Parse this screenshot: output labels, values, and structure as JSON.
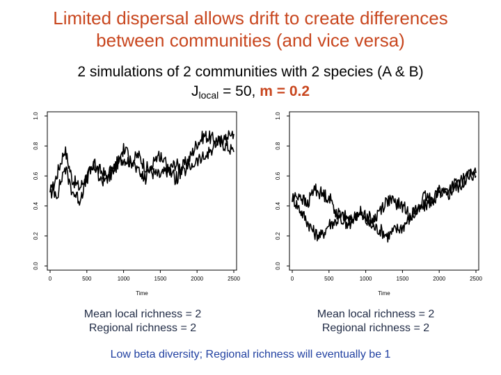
{
  "title": {
    "line1": "Limited dispersal allows drift to create differences",
    "line2": "between communities (and vice versa)"
  },
  "subtitle": {
    "line1": "2 simulations of 2 communities with 2 species (A & B)",
    "j_prefix": "J",
    "j_sub": "local",
    "j_value": " = 50, ",
    "m_text": "m = 0.2"
  },
  "left_summary": {
    "line1": "Mean local richness = 2",
    "line2": "Regional richness = 2"
  },
  "right_summary": {
    "line1": "Mean local richness = 2",
    "line2": "Regional richness = 2"
  },
  "footer": "Low beta diversity; Regional richness will eventually be 1",
  "colors": {
    "title": "#c8461e",
    "summary": "#1f2a44",
    "footer": "#1f3fa0"
  },
  "chart_data": [
    {
      "type": "line",
      "xlabel": "Time",
      "ylabel": "",
      "xlim": [
        0,
        2500
      ],
      "ylim": [
        0,
        1
      ],
      "x_ticks": [
        "0",
        "500",
        "1000",
        "1500",
        "2000",
        "2500"
      ],
      "y_ticks": [
        "0.0",
        "0.2",
        "0.4",
        "0.6",
        "0.8",
        "1.0"
      ],
      "series": [
        {
          "x": [
            0,
            100,
            200,
            300,
            400,
            500,
            600,
            700,
            800,
            900,
            1000,
            1100,
            1200,
            1300,
            1400,
            1500,
            1600,
            1700,
            1800,
            1900,
            2000,
            2100,
            2200,
            2300,
            2400,
            2500
          ],
          "values": [
            0.46,
            0.62,
            0.78,
            0.58,
            0.52,
            0.6,
            0.66,
            0.63,
            0.58,
            0.68,
            0.72,
            0.69,
            0.74,
            0.66,
            0.62,
            0.6,
            0.64,
            0.68,
            0.66,
            0.72,
            0.82,
            0.87,
            0.85,
            0.83,
            0.8,
            0.76
          ]
        },
        {
          "x": [
            0,
            100,
            200,
            300,
            400,
            500,
            600,
            700,
            800,
            900,
            1000,
            1100,
            1200,
            1300,
            1400,
            1500,
            1600,
            1700,
            1800,
            1900,
            2000,
            2100,
            2200,
            2300,
            2400,
            2500
          ],
          "values": [
            0.52,
            0.48,
            0.66,
            0.5,
            0.44,
            0.58,
            0.68,
            0.56,
            0.62,
            0.66,
            0.78,
            0.72,
            0.62,
            0.58,
            0.7,
            0.74,
            0.66,
            0.58,
            0.62,
            0.66,
            0.7,
            0.72,
            0.78,
            0.83,
            0.86,
            0.88
          ]
        }
      ]
    },
    {
      "type": "line",
      "xlabel": "Time",
      "ylabel": "",
      "xlim": [
        0,
        2500
      ],
      "ylim": [
        0,
        1
      ],
      "x_ticks": [
        "0",
        "500",
        "1000",
        "1500",
        "2000",
        "2500"
      ],
      "y_ticks": [
        "0.0",
        "0.2",
        "0.4",
        "0.6",
        "0.8",
        "1.0"
      ],
      "series": [
        {
          "x": [
            0,
            100,
            200,
            300,
            400,
            500,
            600,
            700,
            800,
            900,
            1000,
            1100,
            1200,
            1300,
            1400,
            1500,
            1600,
            1700,
            1800,
            1900,
            2000,
            2100,
            2200,
            2300,
            2400,
            2500
          ],
          "values": [
            0.46,
            0.38,
            0.3,
            0.22,
            0.2,
            0.28,
            0.3,
            0.34,
            0.3,
            0.36,
            0.3,
            0.26,
            0.24,
            0.2,
            0.24,
            0.26,
            0.32,
            0.36,
            0.4,
            0.44,
            0.5,
            0.46,
            0.52,
            0.54,
            0.62,
            0.6
          ]
        },
        {
          "x": [
            0,
            100,
            200,
            300,
            400,
            500,
            600,
            700,
            800,
            900,
            1000,
            1100,
            1200,
            1300,
            1400,
            1500,
            1600,
            1700,
            1800,
            1900,
            2000,
            2100,
            2200,
            2300,
            2400,
            2500
          ],
          "values": [
            0.44,
            0.48,
            0.4,
            0.52,
            0.48,
            0.46,
            0.36,
            0.3,
            0.28,
            0.36,
            0.34,
            0.3,
            0.38,
            0.44,
            0.42,
            0.4,
            0.34,
            0.38,
            0.46,
            0.44,
            0.48,
            0.5,
            0.54,
            0.56,
            0.6,
            0.62
          ]
        }
      ]
    }
  ]
}
